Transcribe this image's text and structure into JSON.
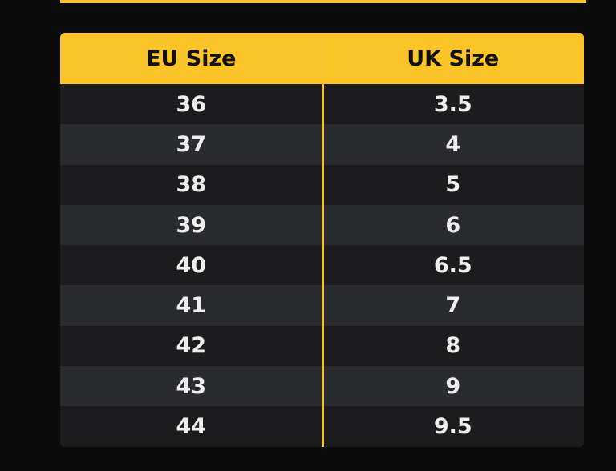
{
  "table": {
    "headers": [
      "EU Size",
      "UK Size"
    ],
    "rows": [
      [
        "36",
        "3.5"
      ],
      [
        "37",
        "4"
      ],
      [
        "38",
        "5"
      ],
      [
        "39",
        "6"
      ],
      [
        "40",
        "6.5"
      ],
      [
        "41",
        "7"
      ],
      [
        "42",
        "8"
      ],
      [
        "43",
        "9"
      ],
      [
        "44",
        "9.5"
      ]
    ]
  }
}
